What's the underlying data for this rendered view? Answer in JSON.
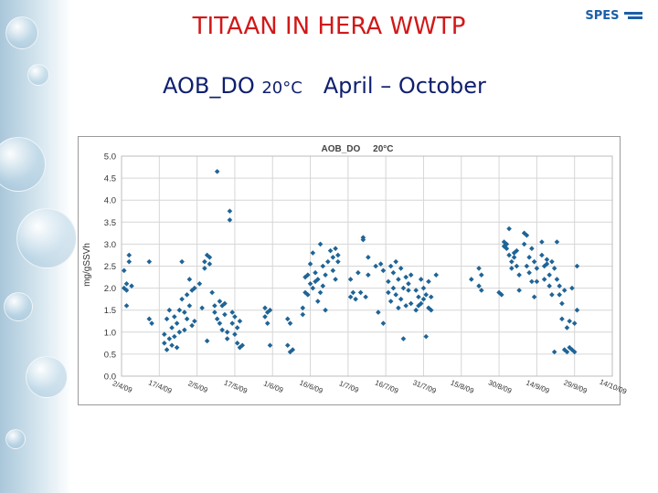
{
  "slide": {
    "title": "TITAAN IN HERA WWTP",
    "subtitle_main": "AOB_DO ",
    "subtitle_temp": "20°C",
    "subtitle_period": "   April – October",
    "logo_text": "SPES"
  },
  "colors": {
    "title": "#d21818",
    "subtitle": "#0f1f6e",
    "points": "#1f6496",
    "grid": "#d6d6d6"
  },
  "chart_data": {
    "type": "scatter",
    "title": "AOB_DO     20°C",
    "xlabel": "",
    "ylabel": "mg/gSSVh",
    "ylim": [
      0,
      5
    ],
    "yticks": [
      0.0,
      0.5,
      1.0,
      1.5,
      2.0,
      2.5,
      3.0,
      3.5,
      4.0,
      4.5,
      5.0
    ],
    "ytick_labels": [
      "0.0",
      "0.5",
      "1.0",
      "1.5",
      "2.0",
      "2.5",
      "3.0",
      "3.5",
      "4.0",
      "4.5",
      "5.0"
    ],
    "xlim": [
      "2009-04-02",
      "2009-10-14"
    ],
    "xtick_dates": [
      "2009-04-02",
      "2009-04-17",
      "2009-05-02",
      "2009-05-17",
      "2009-06-01",
      "2009-06-16",
      "2009-07-01",
      "2009-07-16",
      "2009-07-31",
      "2009-08-15",
      "2009-08-30",
      "2009-09-14",
      "2009-09-29",
      "2009-10-14"
    ],
    "xtick_labels": [
      "2/4/09",
      "17/4/09",
      "2/5/09",
      "17/5/09",
      "1/6/09",
      "16/6/09",
      "1/7/09",
      "16/7/09",
      "31/7/09",
      "15/8/09",
      "30/8/09",
      "14/9/09",
      "29/9/09",
      "14/10/09"
    ],
    "grid": true,
    "series": [
      {
        "points": [
          [
            "2009-04-03",
            2.0
          ],
          [
            "2009-04-03",
            2.4
          ],
          [
            "2009-04-04",
            2.1
          ],
          [
            "2009-04-04",
            1.6
          ],
          [
            "2009-04-05",
            2.6
          ],
          [
            "2009-04-05",
            2.75
          ],
          [
            "2009-04-06",
            2.05
          ],
          [
            "2009-04-04",
            1.95
          ],
          [
            "2009-04-13",
            2.6
          ],
          [
            "2009-04-13",
            1.3
          ],
          [
            "2009-04-14",
            1.2
          ],
          [
            "2009-04-19",
            0.75
          ],
          [
            "2009-04-19",
            0.95
          ],
          [
            "2009-04-20",
            0.6
          ],
          [
            "2009-04-20",
            1.3
          ],
          [
            "2009-04-21",
            0.85
          ],
          [
            "2009-04-21",
            1.5
          ],
          [
            "2009-04-22",
            1.1
          ],
          [
            "2009-04-22",
            0.7
          ],
          [
            "2009-04-23",
            1.35
          ],
          [
            "2009-04-23",
            0.9
          ],
          [
            "2009-04-24",
            1.2
          ],
          [
            "2009-04-24",
            0.65
          ],
          [
            "2009-04-25",
            1.0
          ],
          [
            "2009-04-25",
            1.5
          ],
          [
            "2009-04-26",
            2.6
          ],
          [
            "2009-04-26",
            1.75
          ],
          [
            "2009-04-27",
            1.45
          ],
          [
            "2009-04-27",
            1.05
          ],
          [
            "2009-04-28",
            1.85
          ],
          [
            "2009-04-28",
            1.3
          ],
          [
            "2009-04-29",
            1.6
          ],
          [
            "2009-04-29",
            2.2
          ],
          [
            "2009-04-30",
            1.15
          ],
          [
            "2009-04-30",
            1.95
          ],
          [
            "2009-05-01",
            2.0
          ],
          [
            "2009-05-01",
            1.25
          ],
          [
            "2009-05-03",
            2.1
          ],
          [
            "2009-05-04",
            1.55
          ],
          [
            "2009-05-05",
            2.45
          ],
          [
            "2009-05-05",
            2.6
          ],
          [
            "2009-05-06",
            2.75
          ],
          [
            "2009-05-06",
            0.8
          ],
          [
            "2009-05-07",
            2.55
          ],
          [
            "2009-05-07",
            2.7
          ],
          [
            "2009-05-08",
            1.9
          ],
          [
            "2009-05-09",
            1.6
          ],
          [
            "2009-05-09",
            1.45
          ],
          [
            "2009-05-10",
            1.3
          ],
          [
            "2009-05-10",
            4.65
          ],
          [
            "2009-05-11",
            1.7
          ],
          [
            "2009-05-11",
            1.2
          ],
          [
            "2009-05-12",
            1.6
          ],
          [
            "2009-05-12",
            1.05
          ],
          [
            "2009-05-13",
            1.4
          ],
          [
            "2009-05-13",
            1.65
          ],
          [
            "2009-05-14",
            1.0
          ],
          [
            "2009-05-14",
            0.85
          ],
          [
            "2009-05-15",
            3.75
          ],
          [
            "2009-05-15",
            3.55
          ],
          [
            "2009-05-16",
            1.45
          ],
          [
            "2009-05-16",
            1.2
          ],
          [
            "2009-05-17",
            0.95
          ],
          [
            "2009-05-17",
            1.35
          ],
          [
            "2009-05-18",
            1.1
          ],
          [
            "2009-05-18",
            0.75
          ],
          [
            "2009-05-19",
            1.25
          ],
          [
            "2009-05-19",
            0.65
          ],
          [
            "2009-05-20",
            0.7
          ],
          [
            "2009-05-29",
            1.55
          ],
          [
            "2009-05-29",
            1.35
          ],
          [
            "2009-05-30",
            1.45
          ],
          [
            "2009-05-30",
            1.2
          ],
          [
            "2009-05-31",
            1.5
          ],
          [
            "2009-05-31",
            0.7
          ],
          [
            "2009-06-07",
            0.7
          ],
          [
            "2009-06-07",
            1.3
          ],
          [
            "2009-06-08",
            0.55
          ],
          [
            "2009-06-08",
            1.2
          ],
          [
            "2009-06-09",
            0.6
          ],
          [
            "2009-06-13",
            1.55
          ],
          [
            "2009-06-13",
            1.4
          ],
          [
            "2009-06-14",
            1.9
          ],
          [
            "2009-06-14",
            2.25
          ],
          [
            "2009-06-15",
            2.3
          ],
          [
            "2009-06-15",
            1.85
          ],
          [
            "2009-06-16",
            2.1
          ],
          [
            "2009-06-16",
            2.55
          ],
          [
            "2009-06-17",
            2.0
          ],
          [
            "2009-06-17",
            2.8
          ],
          [
            "2009-06-18",
            2.15
          ],
          [
            "2009-06-18",
            2.35
          ],
          [
            "2009-06-19",
            1.7
          ],
          [
            "2009-06-19",
            2.2
          ],
          [
            "2009-06-20",
            3.0
          ],
          [
            "2009-06-20",
            1.9
          ],
          [
            "2009-06-21",
            2.05
          ],
          [
            "2009-06-21",
            2.5
          ],
          [
            "2009-06-22",
            1.5
          ],
          [
            "2009-06-22",
            2.3
          ],
          [
            "2009-06-23",
            2.6
          ],
          [
            "2009-06-24",
            2.85
          ],
          [
            "2009-06-25",
            2.4
          ],
          [
            "2009-06-25",
            2.7
          ],
          [
            "2009-06-26",
            2.9
          ],
          [
            "2009-06-26",
            2.2
          ],
          [
            "2009-06-27",
            2.6
          ],
          [
            "2009-06-27",
            2.75
          ],
          [
            "2009-07-02",
            2.2
          ],
          [
            "2009-07-02",
            1.8
          ],
          [
            "2009-07-03",
            1.9
          ],
          [
            "2009-07-04",
            1.75
          ],
          [
            "2009-07-05",
            2.35
          ],
          [
            "2009-07-06",
            1.9
          ],
          [
            "2009-07-07",
            3.15
          ],
          [
            "2009-07-07",
            3.1
          ],
          [
            "2009-07-08",
            1.8
          ],
          [
            "2009-07-09",
            2.3
          ],
          [
            "2009-07-09",
            2.7
          ],
          [
            "2009-07-12",
            2.5
          ],
          [
            "2009-07-13",
            1.45
          ],
          [
            "2009-07-14",
            2.55
          ],
          [
            "2009-07-15",
            1.2
          ],
          [
            "2009-07-15",
            2.4
          ],
          [
            "2009-07-17",
            2.15
          ],
          [
            "2009-07-17",
            1.9
          ],
          [
            "2009-07-18",
            2.5
          ],
          [
            "2009-07-18",
            1.7
          ],
          [
            "2009-07-19",
            2.35
          ],
          [
            "2009-07-19",
            2.0
          ],
          [
            "2009-07-20",
            2.6
          ],
          [
            "2009-07-20",
            1.85
          ],
          [
            "2009-07-21",
            2.2
          ],
          [
            "2009-07-21",
            1.55
          ],
          [
            "2009-07-22",
            2.45
          ],
          [
            "2009-07-22",
            1.75
          ],
          [
            "2009-07-23",
            2.0
          ],
          [
            "2009-07-23",
            0.85
          ],
          [
            "2009-07-24",
            2.25
          ],
          [
            "2009-07-24",
            1.6
          ],
          [
            "2009-07-25",
            2.1
          ],
          [
            "2009-07-25",
            1.95
          ],
          [
            "2009-07-26",
            1.65
          ],
          [
            "2009-07-26",
            2.3
          ],
          [
            "2009-07-28",
            1.95
          ],
          [
            "2009-07-28",
            1.5
          ],
          [
            "2009-07-29",
            1.8
          ],
          [
            "2009-07-29",
            1.6
          ],
          [
            "2009-07-30",
            2.2
          ],
          [
            "2009-07-30",
            1.65
          ],
          [
            "2009-07-31",
            1.75
          ],
          [
            "2009-07-31",
            2.0
          ],
          [
            "2009-08-01",
            0.9
          ],
          [
            "2009-08-01",
            1.85
          ],
          [
            "2009-08-02",
            1.55
          ],
          [
            "2009-08-02",
            2.15
          ],
          [
            "2009-08-03",
            1.8
          ],
          [
            "2009-08-03",
            1.5
          ],
          [
            "2009-08-05",
            2.3
          ],
          [
            "2009-08-19",
            2.2
          ],
          [
            "2009-08-22",
            2.45
          ],
          [
            "2009-08-22",
            2.05
          ],
          [
            "2009-08-23",
            2.3
          ],
          [
            "2009-08-23",
            1.95
          ],
          [
            "2009-08-30",
            1.9
          ],
          [
            "2009-08-31",
            1.85
          ],
          [
            "2009-09-01",
            2.95
          ],
          [
            "2009-09-01",
            3.05
          ],
          [
            "2009-09-02",
            2.9
          ],
          [
            "2009-09-02",
            3.0
          ],
          [
            "2009-09-03",
            2.75
          ],
          [
            "2009-09-03",
            3.35
          ],
          [
            "2009-09-04",
            2.6
          ],
          [
            "2009-09-04",
            2.45
          ],
          [
            "2009-09-05",
            2.8
          ],
          [
            "2009-09-05",
            2.7
          ],
          [
            "2009-09-06",
            2.5
          ],
          [
            "2009-09-06",
            2.85
          ],
          [
            "2009-09-07",
            2.3
          ],
          [
            "2009-09-07",
            1.95
          ],
          [
            "2009-09-09",
            3.25
          ],
          [
            "2009-09-09",
            3.0
          ],
          [
            "2009-09-10",
            3.2
          ],
          [
            "2009-09-10",
            2.5
          ],
          [
            "2009-09-11",
            2.7
          ],
          [
            "2009-09-11",
            2.35
          ],
          [
            "2009-09-12",
            2.15
          ],
          [
            "2009-09-12",
            2.9
          ],
          [
            "2009-09-13",
            1.8
          ],
          [
            "2009-09-13",
            2.6
          ],
          [
            "2009-09-14",
            2.45
          ],
          [
            "2009-09-14",
            2.15
          ],
          [
            "2009-09-16",
            3.05
          ],
          [
            "2009-09-16",
            2.75
          ],
          [
            "2009-09-17",
            2.5
          ],
          [
            "2009-09-17",
            2.2
          ],
          [
            "2009-09-18",
            2.65
          ],
          [
            "2009-09-18",
            2.55
          ],
          [
            "2009-09-19",
            2.05
          ],
          [
            "2009-09-19",
            2.3
          ],
          [
            "2009-09-20",
            2.6
          ],
          [
            "2009-09-20",
            1.85
          ],
          [
            "2009-09-21",
            0.55
          ],
          [
            "2009-09-21",
            2.45
          ],
          [
            "2009-09-22",
            2.2
          ],
          [
            "2009-09-22",
            3.05
          ],
          [
            "2009-09-23",
            1.85
          ],
          [
            "2009-09-23",
            2.05
          ],
          [
            "2009-09-24",
            1.65
          ],
          [
            "2009-09-24",
            1.3
          ],
          [
            "2009-09-25",
            0.6
          ],
          [
            "2009-09-25",
            1.95
          ],
          [
            "2009-09-26",
            1.1
          ],
          [
            "2009-09-26",
            0.55
          ],
          [
            "2009-09-27",
            0.65
          ],
          [
            "2009-09-27",
            1.25
          ],
          [
            "2009-09-28",
            2.0
          ],
          [
            "2009-09-28",
            0.6
          ],
          [
            "2009-09-29",
            1.2
          ],
          [
            "2009-09-29",
            0.55
          ],
          [
            "2009-09-30",
            2.5
          ],
          [
            "2009-09-30",
            1.5
          ]
        ]
      }
    ]
  }
}
